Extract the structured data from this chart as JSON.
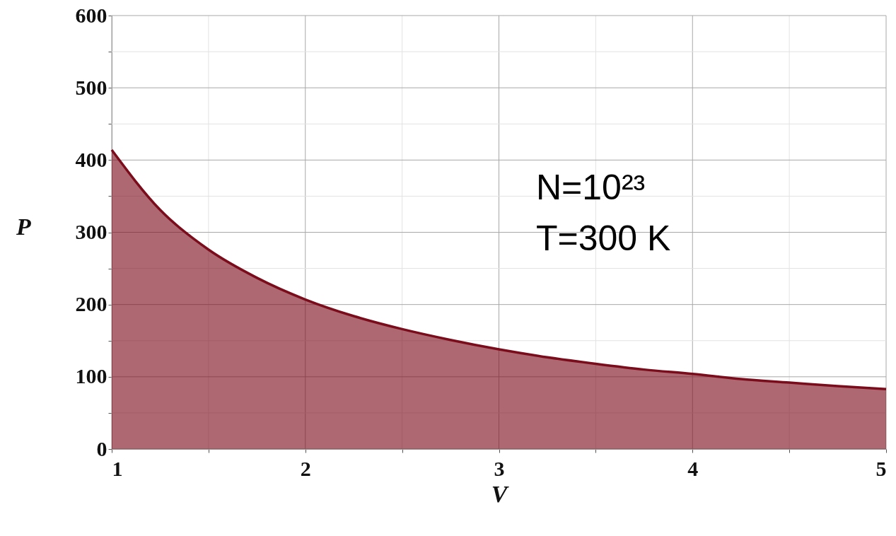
{
  "chart_data": {
    "type": "area",
    "xlabel": "V",
    "ylabel": "P",
    "annotations": [
      "N=10²³",
      "T=300 K"
    ],
    "x": [
      1,
      1.25,
      1.5,
      1.75,
      2,
      2.25,
      2.5,
      2.75,
      3,
      3.25,
      3.5,
      3.75,
      4,
      4.25,
      4.5,
      4.75,
      5
    ],
    "series": [
      {
        "color": "#7b0c1b",
        "values": [
          414,
          331,
          276,
          237,
          207,
          184,
          166,
          151,
          138,
          127,
          118,
          110,
          104,
          97,
          92,
          87,
          83
        ]
      }
    ],
    "xlim": [
      1,
      5
    ],
    "ylim": [
      0,
      600
    ],
    "xticks": [
      1,
      {
        "value": 1.5,
        "label": null
      },
      2,
      {
        "value": 2.5,
        "label": null
      },
      3,
      {
        "value": 3.5,
        "label": null
      },
      4,
      {
        "value": 4.5,
        "label": null
      },
      5
    ],
    "yticks": [
      0,
      {
        "value": 50,
        "label": null
      },
      100,
      {
        "value": 150,
        "label": null
      },
      200,
      {
        "value": 250,
        "label": null
      },
      300,
      {
        "value": 350,
        "label": null
      },
      400,
      {
        "value": 450,
        "label": null
      },
      500,
      {
        "value": 550,
        "label": null
      },
      600
    ],
    "grid": true
  }
}
